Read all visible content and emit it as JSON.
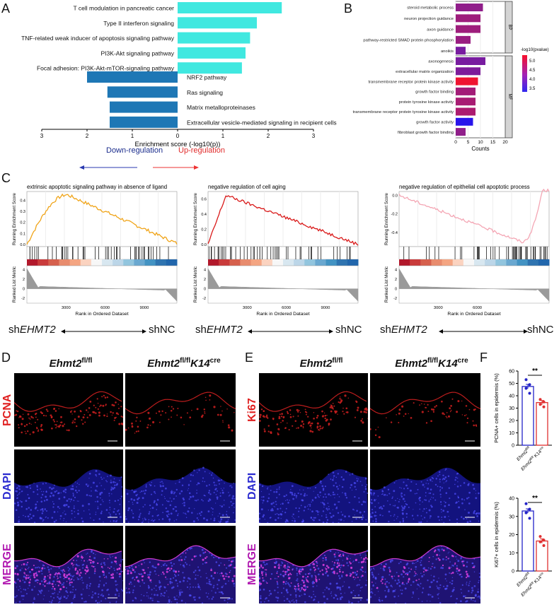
{
  "panels": {
    "A": "A",
    "B": "B",
    "C": "C",
    "D": "D",
    "E": "E",
    "F": "F"
  },
  "colors": {
    "up": "#40E8E0",
    "down": "#1E77B5",
    "bp_gray": "#d4d4d4",
    "red_arrow": "#e33",
    "blue_arrow": "#2a3ab0"
  },
  "panelA": {
    "xlabel": "Enrichment score (-log10(p))",
    "down_label": "Down-regulation",
    "up_label": "Up-regulation",
    "ticks": [
      "3",
      "2",
      "1",
      "0",
      "1",
      "2",
      "3"
    ],
    "chart_data": {
      "type": "bar",
      "title": "",
      "xlabel": "Enrichment score (-log10(p))",
      "xlim": [
        -3,
        3
      ],
      "up": [
        {
          "term": "T cell modulation in pancreatic cancer",
          "value": 2.3
        },
        {
          "term": "Type II interferon signaling",
          "value": 1.75
        },
        {
          "term": "TNF-related weak inducer of apoptosis signaling pathway",
          "value": 1.6
        },
        {
          "term": "PI3K-Akt signaling pathway",
          "value": 1.5
        },
        {
          "term": "Focal adhesion: PI3K-Akt-mTOR-signaling pathway",
          "value": 1.42
        }
      ],
      "down": [
        {
          "term": "NRF2 pathway",
          "value": -2.0
        },
        {
          "term": "Ras signaling",
          "value": -1.55
        },
        {
          "term": "Matrix metalloproteinases",
          "value": -1.5
        },
        {
          "term": "Extracellular vesicle-mediated signaling in recipient cells",
          "value": -1.5
        }
      ]
    }
  },
  "panelB": {
    "xlabel": "Counts",
    "ticks": [
      "0",
      "5",
      "10",
      "15",
      "20"
    ],
    "legend_title": "-log10(pvalue)",
    "legend_ticks": [
      "5.0",
      "4.5",
      "4.0",
      "3.5"
    ],
    "groups": {
      "BP": "BP",
      "MF": "MF"
    },
    "chart_data": {
      "type": "bar",
      "xlim": [
        0,
        20
      ],
      "BP": [
        {
          "term": "steroid metabolic process",
          "count": 11,
          "p": 4.3
        },
        {
          "term": "neuron projection guidance",
          "count": 10,
          "p": 4.45
        },
        {
          "term": "axon guidance",
          "count": 10,
          "p": 4.45
        },
        {
          "term": "pathway-restricted SMAD protein phosphorylation",
          "count": 6,
          "p": 4.4
        },
        {
          "term": "anoikis",
          "count": 4,
          "p": 4.05
        }
      ],
      "MF": [
        {
          "term": "axonogenesis",
          "count": 12,
          "p": 4.05
        },
        {
          "term": "extracellular matrix organization",
          "count": 10,
          "p": 4.1
        },
        {
          "term": "transmembrane receptor protein kinase activity",
          "count": 9,
          "p": 5.3
        },
        {
          "term": "growth factor binding",
          "count": 8,
          "p": 4.5
        },
        {
          "term": "protein tyrosine kinase activity",
          "count": 8,
          "p": 4.55
        },
        {
          "term": "transmembrane receptor protein tyrosine kinase activity",
          "count": 8,
          "p": 4.6
        },
        {
          "term": "growth factor activity",
          "count": 7,
          "p": 3.2
        },
        {
          "term": "fibroblast growth factor binding",
          "count": 4,
          "p": 4.3
        }
      ]
    }
  },
  "panelC": {
    "ylabel_top": "Running Enrichment Score",
    "ylabel_bottom": "Ranked List Metric",
    "xlabel": "Rank in Ordered Dataset",
    "sh_prefix": "sh",
    "sh_gene": "EHMT2",
    "shNC": "shNC",
    "plots": [
      {
        "title": "extrinsic apoptotic signaling pathway in absence of ligand",
        "color": "#F0A418",
        "yticks": [
          "0.4",
          "0.3",
          "0.2",
          "0.1",
          "0.0"
        ],
        "xticks": [
          "3000",
          "6000",
          "9000"
        ]
      },
      {
        "title": "negative regulation of cell aging",
        "color": "#D91818",
        "yticks": [
          "0.6",
          "0.4",
          "0.2",
          "0.0"
        ],
        "xticks": [
          "3000",
          "6000",
          "9000"
        ]
      },
      {
        "title": "negative regulation of epithelial cell apoptotic process",
        "color": "#F4A6B4",
        "yticks": [
          "0.0",
          "-0.2",
          "-0.4"
        ],
        "xticks": [
          "3000",
          "6000"
        ]
      }
    ],
    "metric_ticks": [
      "4",
      "2",
      "0",
      "-2"
    ]
  },
  "panelD": {
    "col1": {
      "gene": "Ehmt2",
      "sup": "fl/fl",
      "suffix": "",
      "suffix_sup": ""
    },
    "col2": {
      "gene": "Ehmt2",
      "sup": "fl/fl",
      "suffix": "K14",
      "suffix_sup": "cre"
    },
    "rows": [
      {
        "label": "PCNA",
        "color": "#e02020"
      },
      {
        "label": "DAPI",
        "color": "#2b2bd0"
      },
      {
        "label": "MERGE",
        "color": "#b018b0"
      }
    ]
  },
  "panelE": {
    "rows": [
      {
        "label": "Ki67",
        "color": "#e02020"
      },
      {
        "label": "DAPI",
        "color": "#2b2bd0"
      },
      {
        "label": "MERGE",
        "color": "#b018b0"
      }
    ]
  },
  "panelF": {
    "sig": "**",
    "xlab1": "Ehmt2",
    "xlab1_sup": "fl/fl",
    "xlab2": "Ehmt2",
    "xlab2_sup": "fl/fl",
    "xlab2_suffix": "K14",
    "xlab2_suffix_sup": "cre",
    "top": {
      "ylabel": "PCNA+ cells in epidermis (%)",
      "yticks": [
        "60",
        "50",
        "40",
        "30",
        "20",
        "10",
        "0"
      ],
      "chart_data": {
        "type": "bar",
        "ylim": [
          0,
          60
        ],
        "categories": [
          "Ehmt2 fl/fl",
          "Ehmt2 fl/fl K14cre"
        ],
        "values": [
          47.5,
          34.5
        ],
        "points": [
          [
            53,
            49,
            46,
            42
          ],
          [
            37,
            35,
            33,
            31
          ]
        ]
      }
    },
    "bottom": {
      "ylabel": "Ki67+ cells in epidermis (%)",
      "yticks": [
        "40",
        "30",
        "20",
        "10",
        "0"
      ],
      "chart_data": {
        "type": "bar",
        "ylim": [
          0,
          40
        ],
        "categories": [
          "Ehmt2 fl/fl",
          "Ehmt2 fl/fl K14cre"
        ],
        "values": [
          33,
          16.5
        ],
        "points": [
          [
            37,
            34,
            32,
            29
          ],
          [
            19,
            17,
            16,
            14
          ]
        ]
      }
    }
  }
}
